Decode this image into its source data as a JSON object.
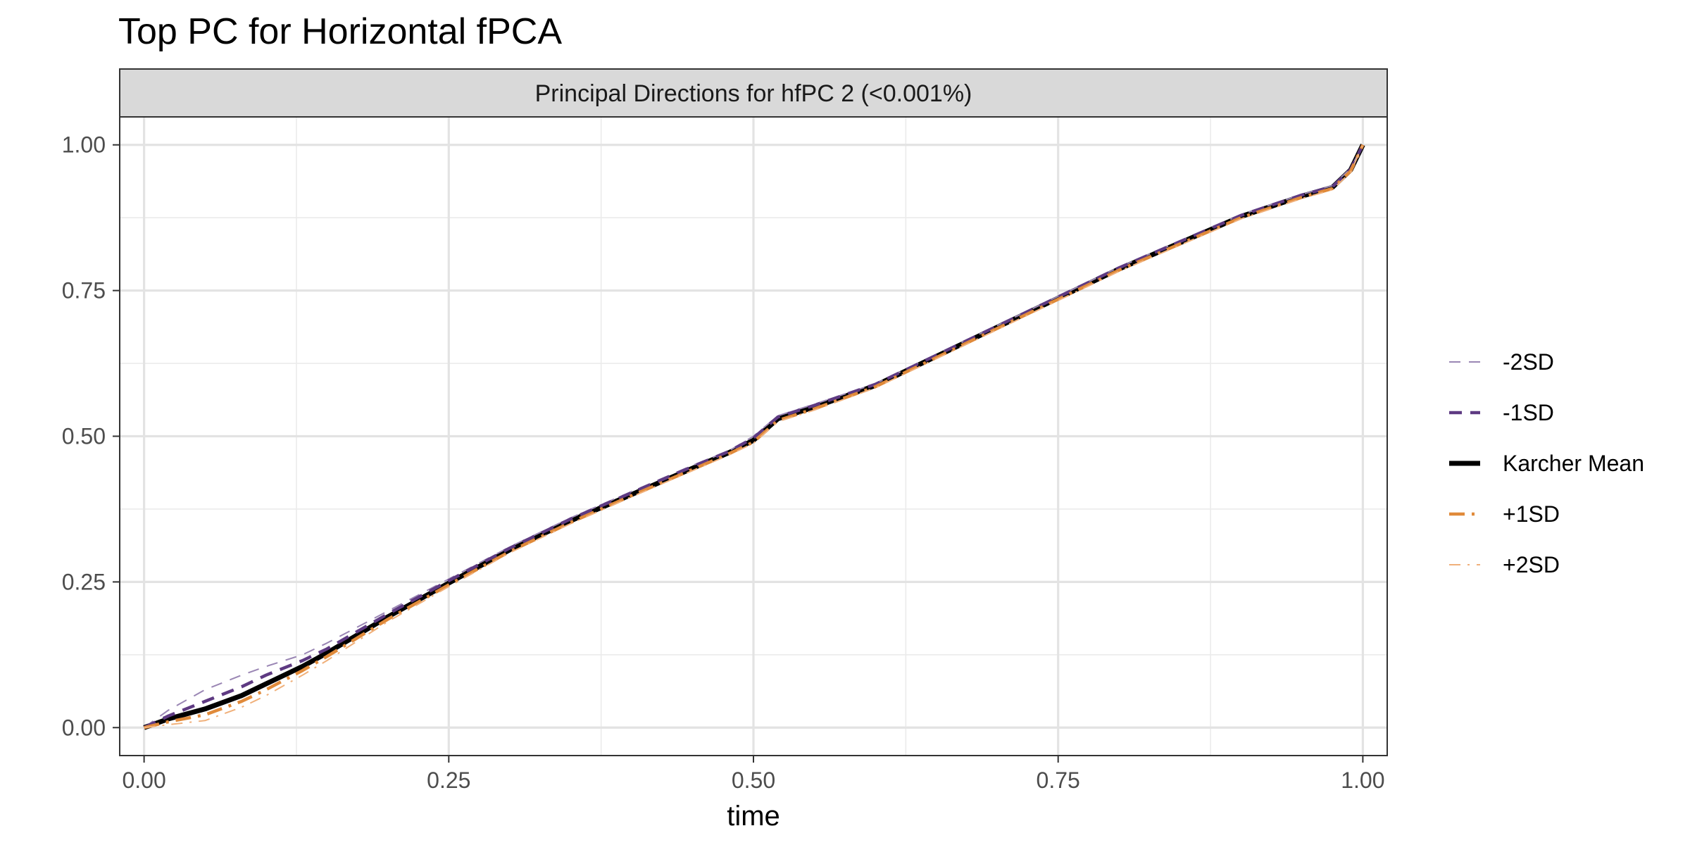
{
  "chart_data": {
    "type": "line",
    "title": "Top PC for Horizontal fPCA",
    "panel_label": "Principal Directions for hfPC 2 (<0.001%)",
    "xlabel": "time",
    "ylabel": "",
    "xlim": [
      -0.02,
      1.02
    ],
    "ylim": [
      -0.048,
      1.048
    ],
    "x_ticks": [
      0.0,
      0.25,
      0.5,
      0.75,
      1.0
    ],
    "x_tick_labels": [
      "0.00",
      "0.25",
      "0.50",
      "0.75",
      "1.00"
    ],
    "y_ticks": [
      0.0,
      0.25,
      0.5,
      0.75,
      1.0
    ],
    "y_tick_labels": [
      "0.00",
      "0.25",
      "0.50",
      "0.75",
      "1.00"
    ],
    "grid": true,
    "legend_position": "right",
    "series": [
      {
        "name": "-2SD",
        "color": "#9a86b4",
        "style": "dashed-thin",
        "points": [
          [
            0,
            0
          ],
          [
            0.02,
            0.03
          ],
          [
            0.05,
            0.065
          ],
          [
            0.08,
            0.09
          ],
          [
            0.1,
            0.105
          ],
          [
            0.13,
            0.125
          ],
          [
            0.15,
            0.145
          ],
          [
            0.2,
            0.2
          ],
          [
            0.25,
            0.255
          ],
          [
            0.3,
            0.31
          ],
          [
            0.35,
            0.36
          ],
          [
            0.4,
            0.405
          ],
          [
            0.45,
            0.45
          ],
          [
            0.48,
            0.475
          ],
          [
            0.5,
            0.5
          ],
          [
            0.52,
            0.535
          ],
          [
            0.55,
            0.555
          ],
          [
            0.6,
            0.59
          ],
          [
            0.65,
            0.64
          ],
          [
            0.7,
            0.69
          ],
          [
            0.75,
            0.74
          ],
          [
            0.8,
            0.79
          ],
          [
            0.85,
            0.835
          ],
          [
            0.9,
            0.88
          ],
          [
            0.95,
            0.915
          ],
          [
            0.975,
            0.93
          ],
          [
            0.99,
            0.96
          ],
          [
            1.0,
            1.0
          ]
        ]
      },
      {
        "name": "-1SD",
        "color": "#5e3a82",
        "style": "dashed-thick",
        "points": [
          [
            0,
            0
          ],
          [
            0.02,
            0.02
          ],
          [
            0.05,
            0.045
          ],
          [
            0.08,
            0.07
          ],
          [
            0.1,
            0.09
          ],
          [
            0.13,
            0.115
          ],
          [
            0.15,
            0.135
          ],
          [
            0.2,
            0.195
          ],
          [
            0.25,
            0.252
          ],
          [
            0.3,
            0.308
          ],
          [
            0.35,
            0.358
          ],
          [
            0.4,
            0.403
          ],
          [
            0.45,
            0.448
          ],
          [
            0.48,
            0.474
          ],
          [
            0.5,
            0.497
          ],
          [
            0.52,
            0.533
          ],
          [
            0.55,
            0.553
          ],
          [
            0.6,
            0.589
          ],
          [
            0.65,
            0.639
          ],
          [
            0.7,
            0.689
          ],
          [
            0.75,
            0.739
          ],
          [
            0.8,
            0.789
          ],
          [
            0.85,
            0.834
          ],
          [
            0.9,
            0.879
          ],
          [
            0.95,
            0.914
          ],
          [
            0.975,
            0.928
          ],
          [
            0.99,
            0.958
          ],
          [
            1.0,
            1.0
          ]
        ]
      },
      {
        "name": "Karcher Mean",
        "color": "#000000",
        "style": "solid",
        "points": [
          [
            0,
            0
          ],
          [
            0.02,
            0.015
          ],
          [
            0.05,
            0.032
          ],
          [
            0.08,
            0.055
          ],
          [
            0.1,
            0.075
          ],
          [
            0.13,
            0.105
          ],
          [
            0.15,
            0.128
          ],
          [
            0.2,
            0.19
          ],
          [
            0.25,
            0.248
          ],
          [
            0.3,
            0.305
          ],
          [
            0.35,
            0.355
          ],
          [
            0.4,
            0.4
          ],
          [
            0.45,
            0.445
          ],
          [
            0.48,
            0.472
          ],
          [
            0.5,
            0.493
          ],
          [
            0.52,
            0.53
          ],
          [
            0.55,
            0.55
          ],
          [
            0.6,
            0.587
          ],
          [
            0.65,
            0.637
          ],
          [
            0.7,
            0.687
          ],
          [
            0.75,
            0.737
          ],
          [
            0.8,
            0.787
          ],
          [
            0.85,
            0.832
          ],
          [
            0.9,
            0.877
          ],
          [
            0.95,
            0.912
          ],
          [
            0.975,
            0.927
          ],
          [
            0.99,
            0.957
          ],
          [
            1.0,
            1.0
          ]
        ]
      },
      {
        "name": "+1SD",
        "color": "#e08a3a",
        "style": "dashdot-thick",
        "points": [
          [
            0,
            0
          ],
          [
            0.02,
            0.01
          ],
          [
            0.05,
            0.022
          ],
          [
            0.08,
            0.045
          ],
          [
            0.1,
            0.065
          ],
          [
            0.13,
            0.098
          ],
          [
            0.15,
            0.122
          ],
          [
            0.2,
            0.186
          ],
          [
            0.25,
            0.245
          ],
          [
            0.3,
            0.302
          ],
          [
            0.35,
            0.352
          ],
          [
            0.4,
            0.398
          ],
          [
            0.45,
            0.443
          ],
          [
            0.48,
            0.47
          ],
          [
            0.5,
            0.49
          ],
          [
            0.52,
            0.527
          ],
          [
            0.55,
            0.547
          ],
          [
            0.6,
            0.585
          ],
          [
            0.65,
            0.635
          ],
          [
            0.7,
            0.685
          ],
          [
            0.75,
            0.735
          ],
          [
            0.8,
            0.785
          ],
          [
            0.85,
            0.83
          ],
          [
            0.9,
            0.875
          ],
          [
            0.95,
            0.91
          ],
          [
            0.975,
            0.925
          ],
          [
            0.99,
            0.955
          ],
          [
            1.0,
            1.0
          ]
        ]
      },
      {
        "name": "+2SD",
        "color": "#f0b07a",
        "style": "dashdot-thin",
        "points": [
          [
            0,
            0
          ],
          [
            0.02,
            0.005
          ],
          [
            0.05,
            0.012
          ],
          [
            0.08,
            0.035
          ],
          [
            0.1,
            0.055
          ],
          [
            0.13,
            0.09
          ],
          [
            0.15,
            0.115
          ],
          [
            0.2,
            0.182
          ],
          [
            0.25,
            0.242
          ],
          [
            0.3,
            0.3
          ],
          [
            0.35,
            0.35
          ],
          [
            0.4,
            0.396
          ],
          [
            0.45,
            0.441
          ],
          [
            0.48,
            0.468
          ],
          [
            0.5,
            0.488
          ],
          [
            0.52,
            0.525
          ],
          [
            0.55,
            0.545
          ],
          [
            0.6,
            0.583
          ],
          [
            0.65,
            0.633
          ],
          [
            0.7,
            0.683
          ],
          [
            0.75,
            0.733
          ],
          [
            0.8,
            0.783
          ],
          [
            0.85,
            0.828
          ],
          [
            0.9,
            0.873
          ],
          [
            0.95,
            0.908
          ],
          [
            0.975,
            0.923
          ],
          [
            0.99,
            0.953
          ],
          [
            1.0,
            1.0
          ]
        ]
      }
    ]
  }
}
